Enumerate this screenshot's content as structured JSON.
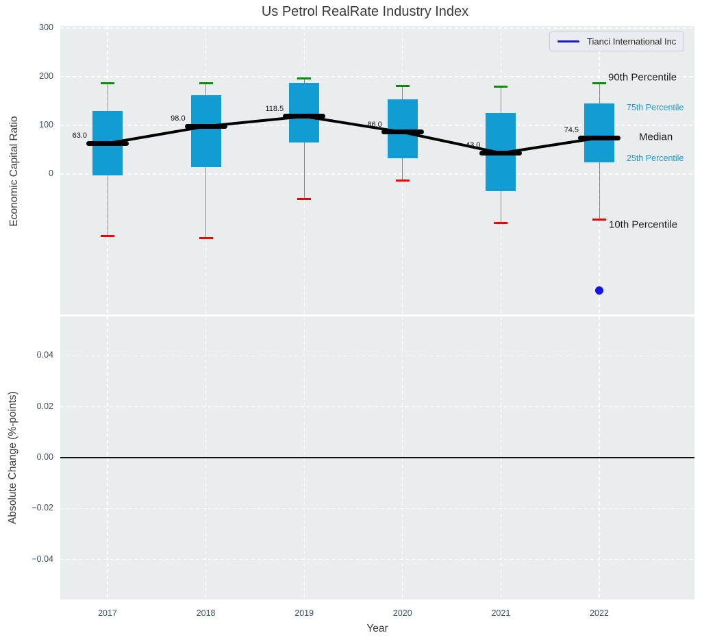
{
  "title": "Us Petrol RealRate Industry Index",
  "xlabel": "Year",
  "legend": {
    "label": "Tianci International Inc"
  },
  "colors": {
    "box": "#119dd4",
    "p90_cap": "#0a8a0a",
    "p10_cap": "#ee0000",
    "whisker": "#888888",
    "median_line": "#000000",
    "trend_line": "#000000",
    "company": "#1414e6",
    "panel_bg": "#e9edee",
    "grid": "#ffffff",
    "tick_label": "#3d4c63",
    "blue_label": "#189ad2",
    "zero_line": "#111111"
  },
  "top_panel": {
    "ylabel": "Economic Capital Ratio",
    "ytick_labels": [
      "300",
      "200",
      "100",
      "0"
    ],
    "ytick_values": [
      300,
      200,
      100,
      0
    ]
  },
  "bottom_panel": {
    "ylabel": "Absolute Change (%-points)",
    "ytick_labels": [
      "0.04",
      "0.02",
      "0.00",
      "−0.02",
      "−0.04"
    ],
    "ytick_values": [
      0.04,
      0.02,
      0.0,
      -0.02,
      -0.04
    ]
  },
  "percentile_labels": [
    {
      "text": "90th Percentile",
      "stat": "p90",
      "style": "black"
    },
    {
      "text": "75th Percentile",
      "stat": "p75",
      "style": "blue"
    },
    {
      "text": "Median",
      "stat": "median",
      "style": "black"
    },
    {
      "text": "25th Percentile",
      "stat": "p25",
      "style": "blue"
    },
    {
      "text": "10th Percentile",
      "stat": "p10",
      "style": "black"
    }
  ],
  "chart_data": [
    {
      "type": "boxplot",
      "title": "Us Petrol RealRate Industry Index",
      "xlabel": "Year",
      "ylabel": "Economic Capital Ratio",
      "categories": [
        "2017",
        "2018",
        "2019",
        "2020",
        "2021",
        "2022"
      ],
      "ylim": [
        -290,
        306
      ],
      "grid": true,
      "legend_position": "upper right",
      "series": [
        {
          "name": "p90",
          "label": "90th percentile",
          "values": [
            186,
            187,
            197,
            181,
            180,
            187
          ]
        },
        {
          "name": "p75",
          "label": "75th percentile",
          "values": [
            130,
            162,
            187,
            153,
            125,
            145
          ]
        },
        {
          "name": "median",
          "label": "Median",
          "values": [
            63.0,
            98.0,
            118.5,
            86.0,
            43.0,
            74.5
          ]
        },
        {
          "name": "p25",
          "label": "25th percentile",
          "values": [
            -3,
            14,
            65,
            33,
            -35,
            24
          ]
        },
        {
          "name": "p10",
          "label": "10th percentile",
          "values": [
            -128,
            -132,
            -52,
            -13,
            -100,
            -93
          ]
        }
      ],
      "median_labels": [
        "63.0",
        "98.0",
        "118.5",
        "86.0",
        "43.0",
        "74.5"
      ],
      "company_series": {
        "name": "Tianci International Inc",
        "points": [
          {
            "x": "2022",
            "y": -240
          }
        ]
      }
    },
    {
      "type": "line",
      "ylabel": "Absolute Change (%-points)",
      "categories": [
        "2017",
        "2018",
        "2019",
        "2020",
        "2021",
        "2022"
      ],
      "ylim": [
        -0.055,
        0.056
      ],
      "yticks": [
        0.04,
        0.02,
        0.0,
        -0.02,
        -0.04
      ],
      "series": [],
      "zero_line": 0.0,
      "grid": true
    }
  ]
}
